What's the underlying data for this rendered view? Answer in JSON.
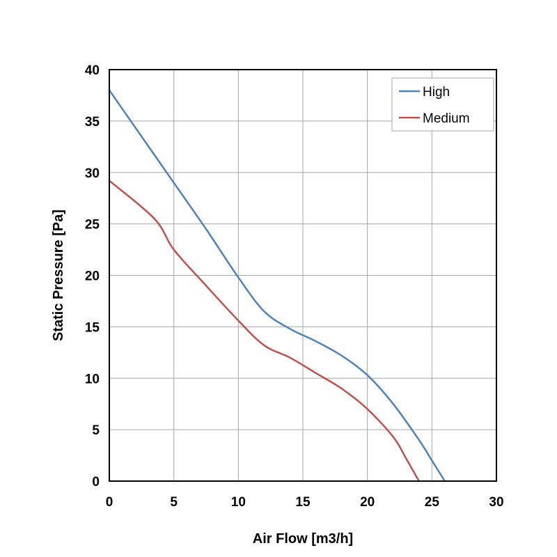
{
  "chart_data": {
    "type": "line",
    "title": "",
    "xlabel": "Air Flow [m3/h]",
    "ylabel": "Static Pressure [Pa]",
    "xlim": [
      0,
      30
    ],
    "ylim": [
      0,
      40
    ],
    "x_ticks": [
      0,
      5,
      10,
      15,
      20,
      25,
      30
    ],
    "y_ticks": [
      0,
      5,
      10,
      15,
      20,
      25,
      30,
      35,
      40
    ],
    "grid": true,
    "legend_position": "top-right",
    "series": [
      {
        "name": "High",
        "color": "#4f81bd",
        "x": [
          0,
          2.5,
          5,
          7.5,
          10,
          12,
          14,
          16,
          18,
          20,
          22,
          24,
          25,
          26
        ],
        "y": [
          38,
          33.5,
          29,
          24.5,
          19.8,
          16.5,
          14.8,
          13.6,
          12.2,
          10.3,
          7.5,
          4,
          2,
          0
        ]
      },
      {
        "name": "Medium",
        "color": "#c0504d",
        "x": [
          0,
          3.5,
          5,
          7.5,
          10,
          12,
          14,
          16,
          18,
          20,
          22,
          23,
          24
        ],
        "y": [
          29.2,
          25.5,
          22.5,
          19,
          15.6,
          13.2,
          12,
          10.5,
          9,
          7,
          4.3,
          2.2,
          0
        ]
      }
    ]
  }
}
